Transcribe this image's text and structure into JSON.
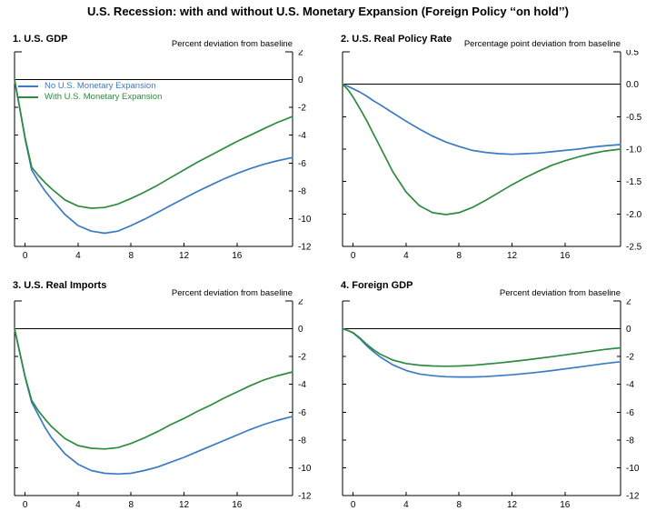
{
  "title": "U.S. Recession: with and without U.S. Monetary Expansion (Foreign Policy ‘‘on hold’’)",
  "legend": {
    "no_expansion": "No U.S. Monetary Expansion",
    "with_expansion": "With U.S. Monetary Expansion"
  },
  "colors": {
    "no_expansion": "#3b7ac4",
    "with_expansion": "#2e8b40",
    "axis": "#000000"
  },
  "chart_data": [
    {
      "type": "line",
      "panel": "1. U.S. GDP",
      "unit_label": "Percent deviation from baseline",
      "xlabel": "",
      "ylabel": "Percent deviation from baseline",
      "xlim": [
        -0.8,
        20.2
      ],
      "ylim": [
        -12,
        2
      ],
      "grid": false,
      "legend_position": "top-left",
      "xticks": [
        0,
        4,
        8,
        12,
        16
      ],
      "ytick_labels": [
        "2",
        "0",
        "-2",
        "-4",
        "-6",
        "-8",
        "-10",
        "-12"
      ],
      "ytick_values": [
        2,
        0,
        -2,
        -4,
        -6,
        -8,
        -10,
        -12
      ],
      "x": [
        -0.8,
        -0.4,
        0,
        0.5,
        1,
        1.5,
        2,
        3,
        4,
        5,
        6,
        7,
        8,
        9,
        10,
        11,
        12,
        13,
        14,
        15,
        16,
        17,
        18,
        19,
        20.2
      ],
      "series": [
        {
          "name": "No U.S. Monetary Expansion",
          "color_key": "no_expansion",
          "values": [
            0,
            -2.1,
            -4.3,
            -6.5,
            -7.3,
            -8.0,
            -8.6,
            -9.7,
            -10.5,
            -10.9,
            -11.05,
            -10.9,
            -10.5,
            -10.05,
            -9.55,
            -9.05,
            -8.55,
            -8.05,
            -7.6,
            -7.15,
            -6.75,
            -6.4,
            -6.1,
            -5.85,
            -5.6
          ]
        },
        {
          "name": "With U.S. Monetary Expansion",
          "color_key": "with_expansion",
          "values": [
            0,
            -2.05,
            -4.2,
            -6.3,
            -6.9,
            -7.4,
            -7.85,
            -8.65,
            -9.1,
            -9.25,
            -9.2,
            -8.95,
            -8.55,
            -8.1,
            -7.6,
            -7.05,
            -6.5,
            -5.95,
            -5.45,
            -4.95,
            -4.45,
            -4.0,
            -3.55,
            -3.1,
            -2.65
          ]
        }
      ]
    },
    {
      "type": "line",
      "panel": "2. U.S. Real Policy Rate",
      "unit_label": "Percentage point deviation from baseline",
      "xlabel": "",
      "ylabel": "Percentage point deviation from baseline",
      "xlim": [
        -0.8,
        20.2
      ],
      "ylim": [
        -2.5,
        0.5
      ],
      "grid": false,
      "legend_position": "none",
      "xticks": [
        0,
        4,
        8,
        12,
        16
      ],
      "ytick_labels": [
        "0.5",
        "0.0",
        "-0.5",
        "-1.0",
        "-1.5",
        "-2.0",
        "-2.5"
      ],
      "ytick_values": [
        0.5,
        0,
        -0.5,
        -1,
        -1.5,
        -2,
        -2.5
      ],
      "x": [
        -0.8,
        -0.4,
        0,
        0.5,
        1,
        1.5,
        2,
        3,
        4,
        5,
        6,
        7,
        8,
        9,
        10,
        11,
        12,
        13,
        14,
        15,
        16,
        17,
        18,
        19,
        20.2
      ],
      "series": [
        {
          "name": "No U.S. Monetary Expansion",
          "color_key": "no_expansion",
          "values": [
            0,
            -0.03,
            -0.07,
            -0.12,
            -0.18,
            -0.25,
            -0.31,
            -0.44,
            -0.57,
            -0.69,
            -0.8,
            -0.89,
            -0.96,
            -1.02,
            -1.05,
            -1.07,
            -1.08,
            -1.07,
            -1.06,
            -1.04,
            -1.02,
            -1.0,
            -0.97,
            -0.95,
            -0.93
          ]
        },
        {
          "name": "With U.S. Monetary Expansion",
          "color_key": "with_expansion",
          "values": [
            0,
            -0.08,
            -0.2,
            -0.37,
            -0.55,
            -0.75,
            -0.95,
            -1.35,
            -1.66,
            -1.87,
            -1.98,
            -2.01,
            -1.98,
            -1.9,
            -1.79,
            -1.67,
            -1.55,
            -1.44,
            -1.34,
            -1.25,
            -1.18,
            -1.12,
            -1.07,
            -1.03,
            -1.0
          ]
        }
      ]
    },
    {
      "type": "line",
      "panel": "3. U.S. Real Imports",
      "unit_label": "Percent deviation from baseline",
      "xlabel": "",
      "ylabel": "Percent deviation from baseline",
      "xlim": [
        -0.8,
        20.2
      ],
      "ylim": [
        -12,
        2
      ],
      "grid": false,
      "legend_position": "none",
      "xticks": [
        0,
        4,
        8,
        12,
        16
      ],
      "ytick_labels": [
        "2",
        "0",
        "-2",
        "-4",
        "-6",
        "-8",
        "-10",
        "-12"
      ],
      "ytick_values": [
        2,
        0,
        -2,
        -4,
        -6,
        -8,
        -10,
        -12
      ],
      "x": [
        -0.8,
        -0.4,
        0,
        0.5,
        1,
        1.5,
        2,
        3,
        4,
        5,
        6,
        7,
        8,
        9,
        10,
        11,
        12,
        13,
        14,
        15,
        16,
        17,
        18,
        19,
        20.2
      ],
      "series": [
        {
          "name": "No U.S. Monetary Expansion",
          "color_key": "no_expansion",
          "values": [
            0,
            -1.75,
            -3.5,
            -5.3,
            -6.2,
            -7.1,
            -7.85,
            -9.0,
            -9.75,
            -10.2,
            -10.4,
            -10.45,
            -10.4,
            -10.2,
            -9.95,
            -9.6,
            -9.25,
            -8.85,
            -8.45,
            -8.05,
            -7.65,
            -7.25,
            -6.9,
            -6.6,
            -6.3
          ]
        },
        {
          "name": "With U.S. Monetary Expansion",
          "color_key": "with_expansion",
          "values": [
            0,
            -1.7,
            -3.45,
            -5.15,
            -5.9,
            -6.5,
            -7.05,
            -7.9,
            -8.4,
            -8.6,
            -8.65,
            -8.55,
            -8.25,
            -7.85,
            -7.4,
            -6.9,
            -6.45,
            -5.95,
            -5.5,
            -5.0,
            -4.55,
            -4.1,
            -3.7,
            -3.4,
            -3.1
          ]
        }
      ]
    },
    {
      "type": "line",
      "panel": "4. Foreign GDP",
      "unit_label": "Percent deviation from baseline",
      "xlabel": "",
      "ylabel": "Percent deviation from baseline",
      "xlim": [
        -0.8,
        20.2
      ],
      "ylim": [
        -12,
        2
      ],
      "grid": false,
      "legend_position": "none",
      "xticks": [
        0,
        4,
        8,
        12,
        16
      ],
      "ytick_labels": [
        "2",
        "0",
        "-2",
        "-4",
        "-6",
        "-8",
        "-10",
        "-12"
      ],
      "ytick_values": [
        2,
        0,
        -2,
        -4,
        -6,
        -8,
        -10,
        -12
      ],
      "x": [
        -0.8,
        -0.4,
        0,
        0.5,
        1,
        1.5,
        2,
        3,
        4,
        5,
        6,
        7,
        8,
        9,
        10,
        11,
        12,
        13,
        14,
        15,
        16,
        17,
        18,
        19,
        20.2
      ],
      "series": [
        {
          "name": "No U.S. Monetary Expansion",
          "color_key": "no_expansion",
          "values": [
            0,
            -0.12,
            -0.3,
            -0.7,
            -1.2,
            -1.62,
            -2.0,
            -2.6,
            -3.0,
            -3.25,
            -3.38,
            -3.45,
            -3.47,
            -3.47,
            -3.44,
            -3.38,
            -3.31,
            -3.22,
            -3.12,
            -3.01,
            -2.89,
            -2.76,
            -2.63,
            -2.5,
            -2.37
          ]
        },
        {
          "name": "With U.S. Monetary Expansion",
          "color_key": "with_expansion",
          "values": [
            0,
            -0.12,
            -0.28,
            -0.65,
            -1.1,
            -1.48,
            -1.8,
            -2.25,
            -2.5,
            -2.62,
            -2.68,
            -2.7,
            -2.68,
            -2.63,
            -2.55,
            -2.46,
            -2.36,
            -2.25,
            -2.13,
            -2.01,
            -1.88,
            -1.75,
            -1.62,
            -1.49,
            -1.37
          ]
        }
      ]
    }
  ]
}
